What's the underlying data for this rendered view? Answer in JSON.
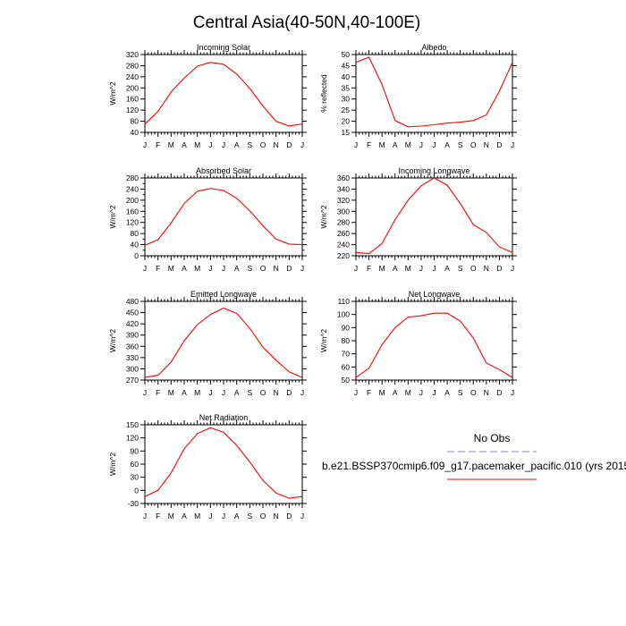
{
  "title": "Central Asia(40-50N,40-100E)",
  "colors": {
    "model": "#ff0000",
    "obs": "#8080ff"
  },
  "legend": {
    "obs_label": "No Obs",
    "model_label": "b.e21.BSSP370cmip6.f09_g17.pacemaker_pacific.010 (yrs 2015"
  },
  "chart_data": [
    {
      "type": "line",
      "title": "Incoming Solar",
      "ylabel": "W/m^2",
      "categories": [
        "J",
        "F",
        "M",
        "A",
        "M",
        "J",
        "J",
        "A",
        "S",
        "O",
        "N",
        "D",
        "J"
      ],
      "ylim": [
        40,
        320
      ],
      "yticks": [
        40,
        80,
        120,
        160,
        200,
        240,
        280,
        320
      ],
      "values": [
        70,
        115,
        185,
        235,
        278,
        292,
        285,
        250,
        198,
        135,
        80,
        63,
        70
      ]
    },
    {
      "type": "line",
      "title": "Albedo",
      "ylabel": "% reflected",
      "categories": [
        "J",
        "F",
        "M",
        "A",
        "M",
        "J",
        "J",
        "A",
        "S",
        "O",
        "N",
        "D",
        "J"
      ],
      "ylim": [
        15,
        50
      ],
      "yticks": [
        15,
        20,
        25,
        30,
        35,
        40,
        45,
        50
      ],
      "values": [
        46.5,
        48.8,
        36.5,
        20.3,
        17.5,
        17.8,
        18.4,
        19.2,
        19.6,
        20.3,
        22.8,
        33.5,
        46.5
      ]
    },
    {
      "type": "line",
      "title": "Absorbed Solar",
      "ylabel": "W/m^2",
      "categories": [
        "J",
        "F",
        "M",
        "A",
        "M",
        "J",
        "J",
        "A",
        "S",
        "O",
        "N",
        "D",
        "J"
      ],
      "ylim": [
        0,
        280
      ],
      "yticks": [
        0,
        20,
        40,
        60,
        80,
        100,
        120,
        140,
        160,
        180,
        200,
        220,
        240,
        260,
        280
      ],
      "ytick_labels": [
        0,
        40,
        80,
        120,
        160,
        200,
        240,
        280
      ],
      "values": [
        38,
        58,
        118,
        188,
        232,
        242,
        235,
        207,
        162,
        108,
        60,
        42,
        40
      ]
    },
    {
      "type": "line",
      "title": "Incoming Longwave",
      "ylabel": "W/m^2",
      "categories": [
        "J",
        "F",
        "M",
        "A",
        "M",
        "J",
        "J",
        "A",
        "S",
        "O",
        "N",
        "D",
        "J"
      ],
      "ylim": [
        220,
        360
      ],
      "yticks": [
        220,
        240,
        260,
        280,
        300,
        320,
        340,
        360
      ],
      "values": [
        226,
        224,
        242,
        285,
        320,
        346,
        360,
        347,
        314,
        276,
        262,
        236,
        226
      ]
    },
    {
      "type": "line",
      "title": "Emitted Longwave",
      "ylabel": "W/m^2",
      "categories": [
        "J",
        "F",
        "M",
        "A",
        "M",
        "J",
        "J",
        "A",
        "S",
        "O",
        "N",
        "D",
        "J"
      ],
      "ylim": [
        270,
        480
      ],
      "yticks": [
        270,
        300,
        330,
        360,
        390,
        420,
        450,
        480
      ],
      "values": [
        277,
        283,
        318,
        375,
        418,
        445,
        462,
        448,
        408,
        358,
        323,
        292,
        277
      ]
    },
    {
      "type": "line",
      "title": "Net Longwave",
      "ylabel": "W/m^2",
      "categories": [
        "J",
        "F",
        "M",
        "A",
        "M",
        "J",
        "J",
        "A",
        "S",
        "O",
        "N",
        "D",
        "J"
      ],
      "ylim": [
        50,
        110
      ],
      "yticks": [
        50,
        60,
        70,
        80,
        90,
        100,
        110
      ],
      "values": [
        52,
        59,
        77,
        90,
        98,
        99,
        101,
        101,
        95,
        82,
        63,
        58,
        52
      ]
    },
    {
      "type": "line",
      "title": "Net Radiation",
      "ylabel": "W/m^2",
      "categories": [
        "J",
        "F",
        "M",
        "A",
        "M",
        "J",
        "J",
        "A",
        "S",
        "O",
        "N",
        "D",
        "J"
      ],
      "ylim": [
        -30,
        150
      ],
      "yticks": [
        -30,
        0,
        30,
        60,
        90,
        120,
        150
      ],
      "values": [
        -14,
        0,
        40,
        95,
        130,
        143,
        133,
        103,
        65,
        23,
        -6,
        -18,
        -14
      ]
    }
  ]
}
